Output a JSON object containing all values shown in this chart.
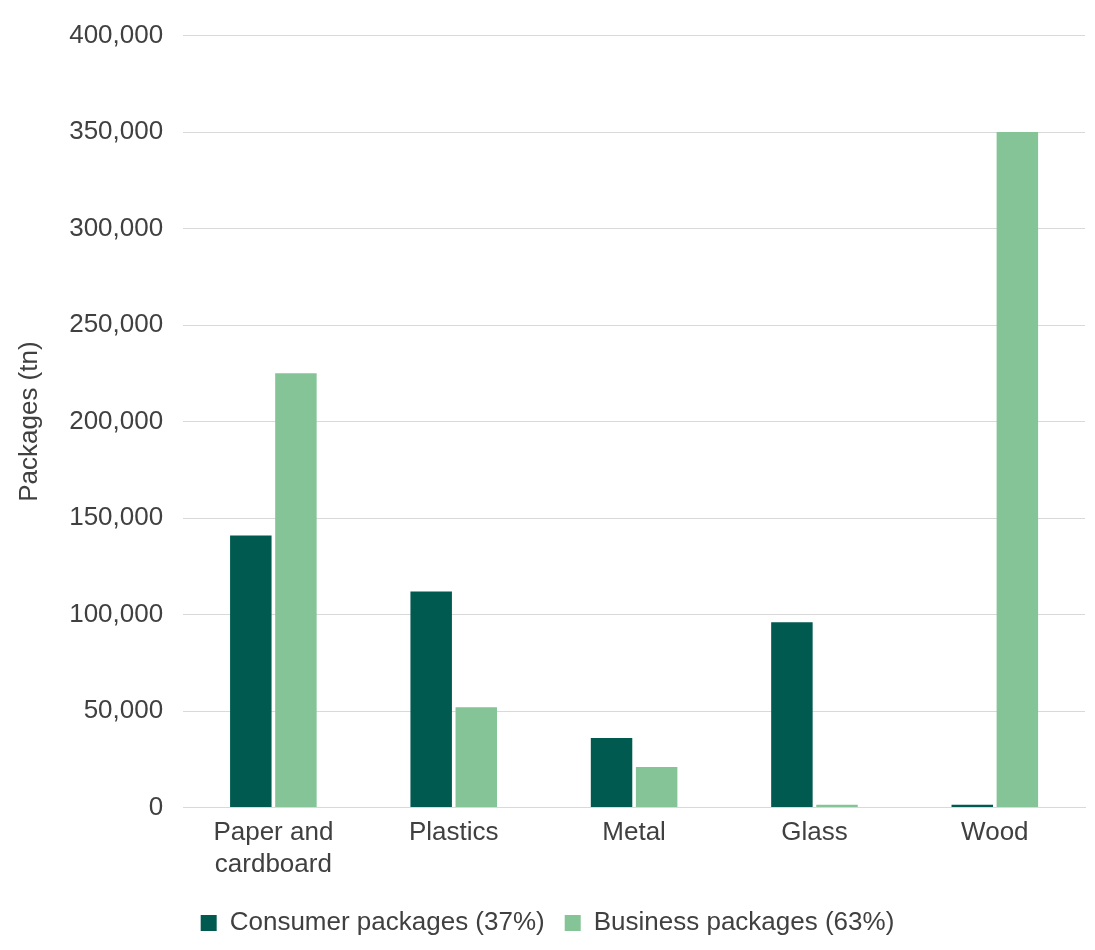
{
  "chart_data": {
    "type": "bar",
    "ylabel": "Packages (tn)",
    "categories": [
      "Paper and cardboard",
      "Plastics",
      "Metal",
      "Glass",
      "Wood"
    ],
    "series": [
      {
        "name": "Consumer packages (37%)",
        "color": "#005a50",
        "values": [
          141000,
          112000,
          36000,
          96000,
          1500
        ]
      },
      {
        "name": "Business packages (63%)",
        "color": "#84c497",
        "values": [
          225000,
          52000,
          21000,
          1500,
          350000
        ]
      }
    ],
    "ylim": [
      0,
      400000
    ],
    "yticks": [
      0,
      {
        "value": 50000,
        "label": "50,000"
      },
      {
        "value": 100000,
        "label": "100,000"
      },
      {
        "value": 150000,
        "label": "150,000"
      },
      {
        "value": 200000,
        "label": "200,000"
      },
      {
        "value": 250000,
        "label": "250,000"
      },
      {
        "value": 300000,
        "label": "300,000"
      },
      {
        "value": 350000,
        "label": "350,000"
      },
      {
        "value": 400000,
        "label": "400,000"
      }
    ],
    "grid": "y",
    "legend": "bottom"
  }
}
